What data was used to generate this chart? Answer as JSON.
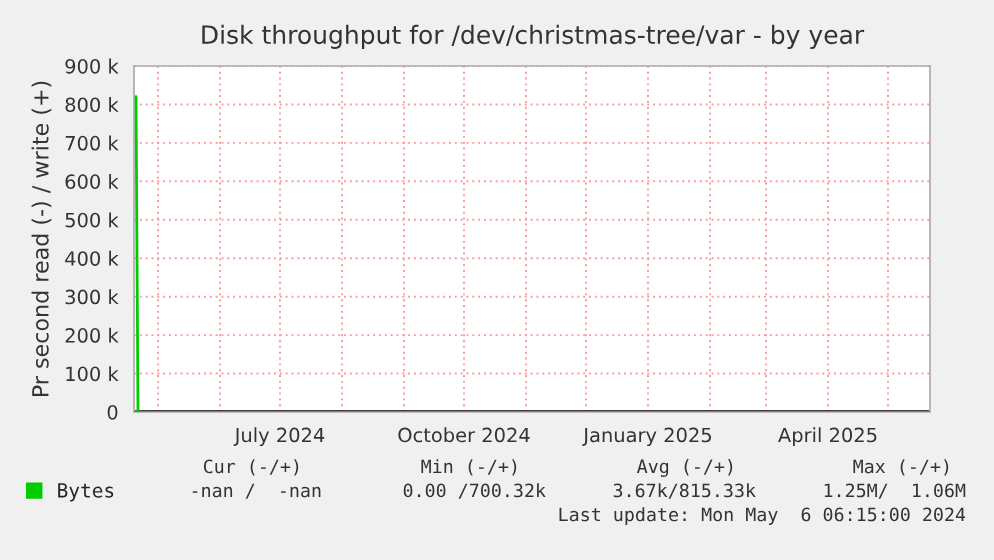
{
  "chart_data": {
    "type": "line",
    "title": "Disk throughput for /dev/christmas-tree/var - by year",
    "ylabel": "Pr second read (-) / write (+)",
    "series": [
      {
        "name": "Bytes",
        "color": "#00cc00",
        "x": [
          "2024-04-20",
          "2024-04-21"
        ],
        "values": [
          820000,
          0
        ]
      }
    ],
    "xlim": [
      "2024-04-19",
      "2025-05-22"
    ],
    "xticks": [
      {
        "value": "2024-05-01",
        "label": null
      },
      {
        "value": "2024-06-01",
        "label": null
      },
      {
        "value": "2024-07-01",
        "label": "July 2024"
      },
      {
        "value": "2024-08-01",
        "label": null
      },
      {
        "value": "2024-09-01",
        "label": null
      },
      {
        "value": "2024-10-01",
        "label": "October 2024"
      },
      {
        "value": "2024-11-01",
        "label": null
      },
      {
        "value": "2024-12-01",
        "label": null
      },
      {
        "value": "2025-01-01",
        "label": "January 2025"
      },
      {
        "value": "2025-02-01",
        "label": null
      },
      {
        "value": "2025-03-01",
        "label": null
      },
      {
        "value": "2025-04-01",
        "label": "April 2025"
      },
      {
        "value": "2025-05-01",
        "label": null
      }
    ],
    "ylim": [
      0,
      900000
    ],
    "yticks": [
      0,
      {
        "value": 100000,
        "label": "100 k"
      },
      {
        "value": 200000,
        "label": "200 k"
      },
      {
        "value": 300000,
        "label": "300 k"
      },
      {
        "value": 400000,
        "label": "400 k"
      },
      {
        "value": 500000,
        "label": "500 k"
      },
      {
        "value": 600000,
        "label": "600 k"
      },
      {
        "value": 700000,
        "label": "700 k"
      },
      {
        "value": 800000,
        "label": "800 k"
      },
      {
        "value": 900000,
        "label": "900 k"
      }
    ],
    "grid": true,
    "legend": "bottom left",
    "annotations": [
      "Cur (-/+)",
      "Min (-/+)",
      "Avg (-/+)",
      "Max (-/+)",
      "-nan /  -nan",
      "0.00 /700.32k",
      "3.67k/815.33k",
      "1.25M/  1.06M",
      "Last update: Mon May  6 06:15:00 2024"
    ]
  }
}
